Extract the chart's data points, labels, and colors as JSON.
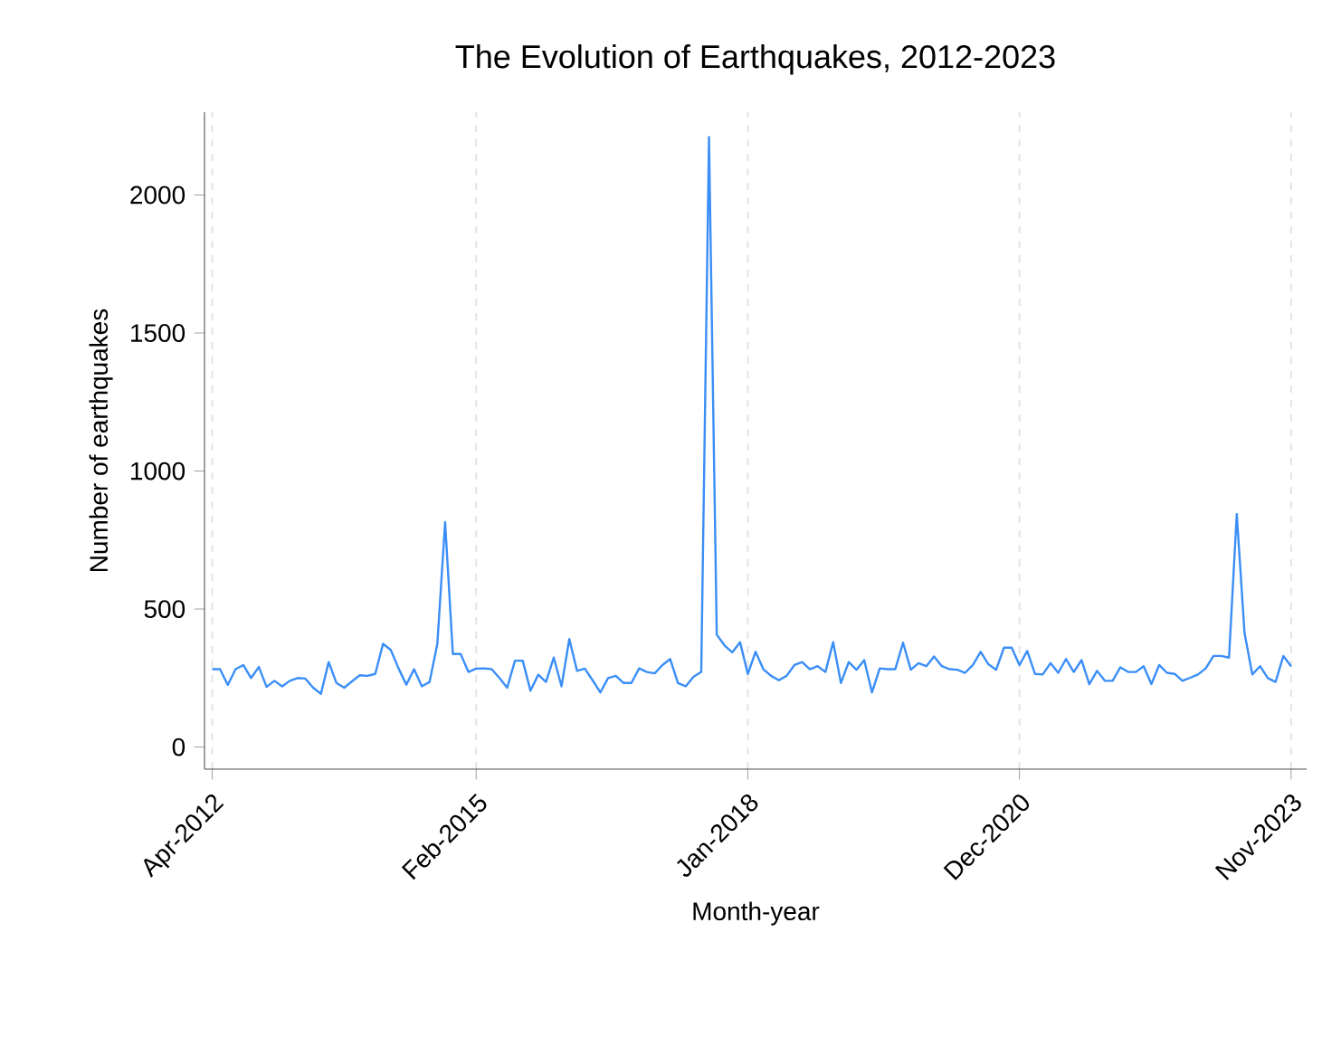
{
  "chart_data": {
    "type": "line",
    "title": "The Evolution of Earthquakes, 2012-2023",
    "xlabel": "Month-year",
    "ylabel": "Number of earthquakes",
    "x": [
      "2012-04",
      "2012-05",
      "2012-06",
      "2012-07",
      "2012-08",
      "2012-09",
      "2012-10",
      "2012-11",
      "2012-12",
      "2013-01",
      "2013-02",
      "2013-03",
      "2013-04",
      "2013-05",
      "2013-06",
      "2013-07",
      "2013-08",
      "2013-09",
      "2013-10",
      "2013-11",
      "2013-12",
      "2014-01",
      "2014-02",
      "2014-03",
      "2014-04",
      "2014-05",
      "2014-06",
      "2014-07",
      "2014-08",
      "2014-09",
      "2014-10",
      "2014-11",
      "2014-12",
      "2015-01",
      "2015-02",
      "2015-03",
      "2015-04",
      "2015-05",
      "2015-06",
      "2015-07",
      "2015-08",
      "2015-09",
      "2015-10",
      "2015-11",
      "2015-12",
      "2016-01",
      "2016-02",
      "2016-03",
      "2016-04",
      "2016-05",
      "2016-06",
      "2016-07",
      "2016-08",
      "2016-09",
      "2016-10",
      "2016-11",
      "2016-12",
      "2017-01",
      "2017-02",
      "2017-03",
      "2017-04",
      "2017-05",
      "2017-06",
      "2017-07",
      "2017-08",
      "2017-09",
      "2017-10",
      "2017-11",
      "2017-12",
      "2018-01",
      "2018-02",
      "2018-03",
      "2018-04",
      "2018-05",
      "2018-06",
      "2018-07",
      "2018-08",
      "2018-09",
      "2018-10",
      "2018-11",
      "2018-12",
      "2019-01",
      "2019-02",
      "2019-03",
      "2019-04",
      "2019-05",
      "2019-06",
      "2019-07",
      "2019-08",
      "2019-09",
      "2019-10",
      "2019-11",
      "2019-12",
      "2020-01",
      "2020-02",
      "2020-03",
      "2020-04",
      "2020-05",
      "2020-06",
      "2020-07",
      "2020-08",
      "2020-09",
      "2020-10",
      "2020-11",
      "2020-12",
      "2021-01",
      "2021-02",
      "2021-03",
      "2021-04",
      "2021-05",
      "2021-06",
      "2021-07",
      "2021-08",
      "2021-09",
      "2021-10",
      "2021-11",
      "2021-12",
      "2022-01",
      "2022-02",
      "2022-03",
      "2022-04",
      "2022-05",
      "2022-06",
      "2022-07",
      "2022-08",
      "2022-09",
      "2022-10",
      "2022-11",
      "2022-12",
      "2023-01",
      "2023-02",
      "2023-03",
      "2023-04",
      "2023-05",
      "2023-06",
      "2023-07",
      "2023-08",
      "2023-09",
      "2023-10",
      "2023-11"
    ],
    "series": [
      {
        "color": "#3a8ef6",
        "values": [
          282,
          282,
          225,
          282,
          297,
          250,
          290,
          218,
          240,
          220,
          240,
          250,
          248,
          215,
          193,
          308,
          232,
          215,
          238,
          260,
          258,
          265,
          374,
          352,
          285,
          226,
          282,
          220,
          236,
          374,
          815,
          337,
          337,
          272,
          284,
          285,
          282,
          250,
          215,
          313,
          313,
          204,
          262,
          236,
          324,
          220,
          391,
          276,
          284,
          242,
          198,
          250,
          258,
          232,
          232,
          285,
          272,
          267,
          297,
          319,
          232,
          220,
          254,
          272,
          2210,
          407,
          368,
          343,
          380,
          265,
          345,
          282,
          258,
          242,
          258,
          297,
          308,
          282,
          293,
          272,
          380,
          232,
          308,
          280,
          315,
          198,
          285,
          282,
          282,
          378,
          280,
          304,
          293,
          328,
          293,
          282,
          280,
          269,
          297,
          345,
          300,
          280,
          360,
          360,
          297,
          348,
          265,
          263,
          304,
          269,
          319,
          272,
          315,
          228,
          276,
          240,
          240,
          289,
          272,
          272,
          293,
          228,
          297,
          269,
          265,
          240,
          251,
          263,
          285,
          330,
          330,
          324,
          844,
          413,
          263,
          293,
          250,
          236,
          330,
          293
        ]
      }
    ],
    "xlim": [
      "2012-03",
      "2024-01"
    ],
    "ylim": [
      -80,
      2300
    ],
    "xticks": [
      {
        "value": "2012-04",
        "label": "Apr-2012"
      },
      {
        "value": "2015-02",
        "label": "Feb-2015"
      },
      {
        "value": "2018-01",
        "label": "Jan-2018"
      },
      {
        "value": "2020-12",
        "label": "Dec-2020"
      },
      {
        "value": "2023-11",
        "label": "Nov-2023"
      }
    ],
    "yticks": [
      0,
      500,
      1000,
      1500,
      2000
    ],
    "grid": "x"
  }
}
